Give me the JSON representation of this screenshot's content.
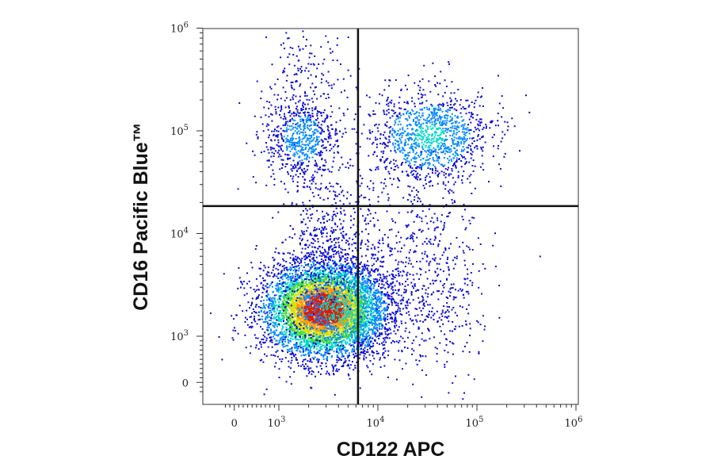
{
  "chart_data": {
    "type": "scatter",
    "subtype": "flow-cytometry-density-dot-plot",
    "xlabel": "CD122 APC",
    "ylabel": "CD16 Pacific Blue™",
    "x_scale": "biexponential (log with linear zero region)",
    "y_scale": "biexponential (log with linear zero region)",
    "xlim": [
      -300,
      1100000
    ],
    "ylim": [
      -300,
      1200000
    ],
    "x_ticks": [
      {
        "value": 0,
        "base": "0",
        "exp": ""
      },
      {
        "value": 1000,
        "base": "10",
        "exp": "3"
      },
      {
        "value": 10000,
        "base": "10",
        "exp": "4"
      },
      {
        "value": 100000,
        "base": "10",
        "exp": "5"
      },
      {
        "value": 1000000,
        "base": "10",
        "exp": "6"
      }
    ],
    "y_ticks": [
      {
        "value": 0,
        "base": "0",
        "exp": ""
      },
      {
        "value": 1000,
        "base": "10",
        "exp": "3"
      },
      {
        "value": 10000,
        "base": "10",
        "exp": "4"
      },
      {
        "value": 100000,
        "base": "10",
        "exp": "5"
      },
      {
        "value": 1000000,
        "base": "10",
        "exp": "6"
      }
    ],
    "quadrant_gate": {
      "x": 6300,
      "y": 18500
    },
    "color_scale": [
      "#0a0ad6",
      "#0088ff",
      "#00d7c8",
      "#3ddc3d",
      "#d4e000",
      "#ff9c00",
      "#e01a00"
    ],
    "grid": false,
    "populations": [
      {
        "quadrant": "lower-left / lower-right",
        "center_x": 2800,
        "center_y": 1850,
        "density": "very high"
      },
      {
        "quadrant": "upper-left",
        "center_x": 1700,
        "center_y": 85000,
        "density": "low"
      },
      {
        "quadrant": "upper-right",
        "center_x": 33000,
        "center_y": 90000,
        "density": "medium"
      },
      {
        "quadrant": "lower-right",
        "center_x": 40000,
        "center_y": 2500,
        "density": "low"
      }
    ]
  }
}
